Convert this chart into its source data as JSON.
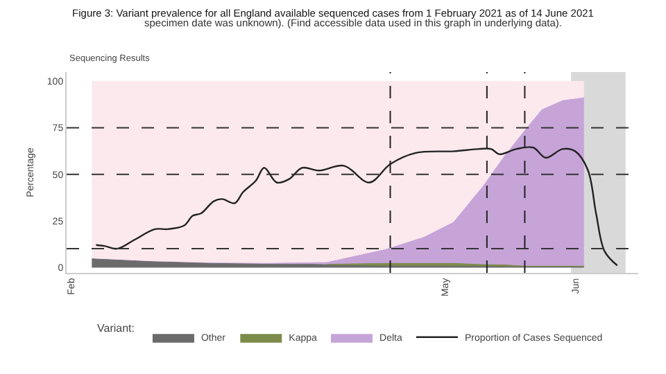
{
  "chart_data": {
    "type": "area",
    "stacked": true,
    "title": "Figure 3: Variant prevalence for all England available sequenced cases from 1 February 2021 as of 14 June 2021",
    "subtitle": "specimen date was unknown). (Find accessible data used in this graph in underlying data).",
    "annotations": [
      "Sequencing Results"
    ],
    "ylabel": "Percentage",
    "legend_title": "Variant:",
    "legend": "bottom",
    "x": [
      "2021-02-06",
      "2021-02-20",
      "2021-03-06",
      "2021-03-20",
      "2021-04-03",
      "2021-04-17",
      "2021-04-26",
      "2021-05-03",
      "2021-05-10",
      "2021-05-15",
      "2021-05-20",
      "2021-05-24",
      "2021-05-29",
      "2021-06-03"
    ],
    "xlim": [
      "2021-01-31",
      "2021-06-16"
    ],
    "xticks": [
      {
        "value": "2021-02-01",
        "label": "Feb"
      },
      {
        "value": "2021-05-01",
        "label": "May"
      },
      {
        "value": "2021-06-01",
        "label": "Jun"
      }
    ],
    "ylim": [
      -3,
      105
    ],
    "yticks": [
      0,
      25,
      50,
      75,
      100
    ],
    "series": [
      {
        "name": "Other",
        "color": "#6b6b6b",
        "values": [
          5,
          3.5,
          2.5,
          2,
          1.5,
          1,
          1,
          1,
          0.8,
          0.7,
          0.5,
          0.5,
          0.5,
          0.5
        ]
      },
      {
        "name": "Kappa",
        "color": "#7d8b4a",
        "values": [
          null,
          null,
          null,
          null,
          0.5,
          1.5,
          1.5,
          1.5,
          1,
          1,
          0.5,
          0.5,
          0.5,
          0.5
        ]
      },
      {
        "name": "Delta",
        "color": "#c6a4d8",
        "values": [
          0,
          0,
          0.2,
          0.5,
          1,
          7.5,
          14,
          22,
          42,
          58,
          73,
          84,
          89,
          90.5
        ]
      },
      {
        "color": "#fbe9ee",
        "values": [
          95,
          96.5,
          97.3,
          97.5,
          97,
          90,
          83.5,
          75.5,
          56.2,
          40.3,
          26,
          15,
          10,
          8.5
        ]
      },
      {
        "name": "Proportion of Cases Sequenced",
        "type": "line",
        "color": "#222222",
        "line_style": "solid",
        "x": [
          "2021-02-07",
          "2021-02-09",
          "2021-02-12",
          "2021-02-16",
          "2021-02-21",
          "2021-02-24",
          "2021-02-28",
          "2021-03-02",
          "2021-03-04",
          "2021-03-07",
          "2021-03-09",
          "2021-03-12",
          "2021-03-14",
          "2021-03-17",
          "2021-03-19",
          "2021-03-22",
          "2021-03-25",
          "2021-03-28",
          "2021-04-01",
          "2021-04-07",
          "2021-04-13",
          "2021-04-18",
          "2021-04-24",
          "2021-05-03",
          "2021-05-09",
          "2021-05-12",
          "2021-05-14",
          "2021-05-18",
          "2021-05-22",
          "2021-05-25",
          "2021-05-29",
          "2021-06-01",
          "2021-06-04",
          "2021-06-06",
          "2021-06-08",
          "2021-06-11"
        ],
        "values": [
          12,
          11.5,
          10,
          14.6,
          20.5,
          20.5,
          22.5,
          27.7,
          29,
          35.5,
          36.7,
          34.5,
          40.5,
          46.5,
          53.5,
          45.6,
          47.5,
          53.5,
          52,
          54.6,
          45.6,
          55.5,
          61.5,
          62.4,
          63.6,
          63.6,
          60.8,
          63.6,
          64.4,
          58.9,
          63.6,
          62.4,
          52.4,
          28.5,
          8.6,
          1
        ]
      }
    ],
    "ref_lines": [
      {
        "axis": "y",
        "value": 75,
        "color": "#333333",
        "line_style": "dashed"
      },
      {
        "axis": "y",
        "value": 50,
        "color": "#333333",
        "line_style": "dashed"
      },
      {
        "axis": "y",
        "value": 10,
        "color": "#333333",
        "line_style": "dashed"
      },
      {
        "axis": "x",
        "value": "2021-04-18",
        "color": "#222222",
        "line_style": "dashed"
      },
      {
        "axis": "x",
        "value": "2021-05-11",
        "color": "#222222",
        "line_style": "dashed"
      },
      {
        "axis": "x",
        "value": "2021-05-20",
        "color": "#222222",
        "line_style": "dashed"
      }
    ],
    "bands": [
      {
        "axis": "x",
        "from": "2021-05-31",
        "to": "2021-06-13",
        "color": "#d9d9d9"
      }
    ]
  }
}
